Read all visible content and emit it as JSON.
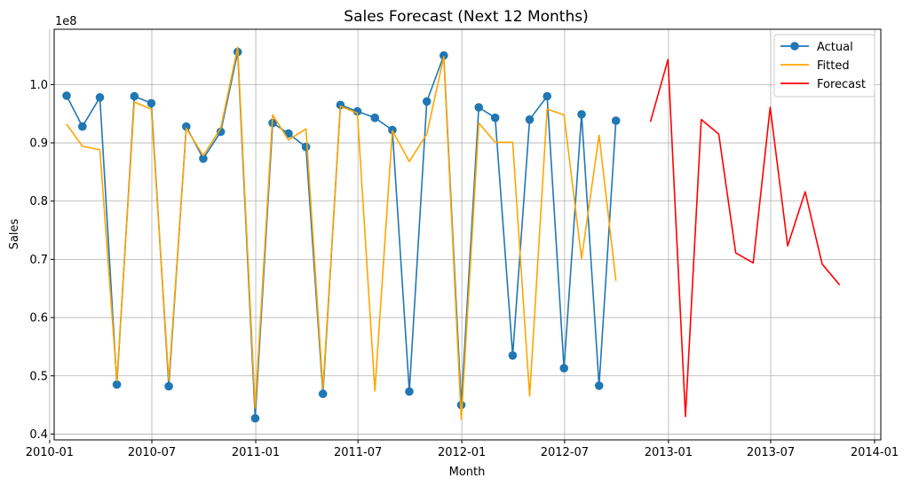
{
  "chart_data": {
    "type": "line",
    "title": "Sales Forecast (Next 12 Months)",
    "xlabel": "Month",
    "ylabel": "Sales",
    "y_offset_label": "1e8",
    "y_scale": 100000000,
    "ylim": [
      0.39,
      1.095
    ],
    "xlim": [
      "2010-01-09",
      "2014-01-12"
    ],
    "y_ticks": [
      "0.4",
      "0.5",
      "0.6",
      "0.7",
      "0.8",
      "0.9",
      "1.0"
    ],
    "y_tick_values": [
      0.4,
      0.5,
      0.6,
      0.7,
      0.8,
      0.9,
      1.0
    ],
    "x_ticks": [
      "2010-01",
      "2010-07",
      "2011-01",
      "2011-07",
      "2012-01",
      "2012-07",
      "2013-01",
      "2013-07",
      "2014-01"
    ],
    "x_tick_dates": [
      "2010-01-01",
      "2010-07-01",
      "2011-01-01",
      "2011-07-01",
      "2012-01-01",
      "2012-07-01",
      "2013-01-01",
      "2013-07-01",
      "2014-01-01"
    ],
    "grid": true,
    "legend_position": "top-right",
    "series": [
      {
        "name": "Actual",
        "color": "#1f77b4",
        "marker": "circle",
        "x": [
          "2010-01-31",
          "2010-02-28",
          "2010-03-31",
          "2010-04-30",
          "2010-05-31",
          "2010-06-30",
          "2010-07-31",
          "2010-08-31",
          "2010-09-30",
          "2010-10-31",
          "2010-11-30",
          "2010-12-31",
          "2011-01-31",
          "2011-02-28",
          "2011-03-31",
          "2011-04-30",
          "2011-05-31",
          "2011-06-30",
          "2011-07-31",
          "2011-08-31",
          "2011-09-30",
          "2011-10-31",
          "2011-11-30",
          "2011-12-31",
          "2012-01-31",
          "2012-02-29",
          "2012-03-31",
          "2012-04-30",
          "2012-05-31",
          "2012-06-30",
          "2012-07-31",
          "2012-08-31",
          "2012-09-30"
        ],
        "values": [
          0.981,
          0.928,
          0.978,
          0.485,
          0.98,
          0.968,
          0.482,
          0.928,
          0.873,
          0.919,
          1.056,
          0.427,
          0.934,
          0.916,
          0.893,
          0.469,
          0.965,
          0.954,
          0.943,
          0.922,
          0.473,
          0.971,
          1.05,
          0.45,
          0.961,
          0.943,
          0.535,
          0.94,
          0.98,
          0.513,
          0.949,
          0.483,
          0.938
        ]
      },
      {
        "name": "Fitted",
        "color": "#ffa500",
        "marker": "none",
        "x": [
          "2010-01-31",
          "2010-02-28",
          "2010-03-31",
          "2010-04-30",
          "2010-05-31",
          "2010-06-30",
          "2010-07-31",
          "2010-08-31",
          "2010-09-30",
          "2010-10-31",
          "2010-11-30",
          "2010-12-31",
          "2011-01-31",
          "2011-02-28",
          "2011-03-31",
          "2011-04-30",
          "2011-05-31",
          "2011-06-30",
          "2011-07-31",
          "2011-08-31",
          "2011-09-30",
          "2011-10-31",
          "2011-11-30",
          "2011-12-31",
          "2012-01-31",
          "2012-02-29",
          "2012-03-31",
          "2012-04-30",
          "2012-05-31",
          "2012-06-30",
          "2012-07-31",
          "2012-08-31",
          "2012-09-30"
        ],
        "values": [
          0.932,
          0.894,
          0.888,
          0.491,
          0.97,
          0.958,
          0.492,
          0.925,
          0.878,
          0.925,
          1.064,
          0.445,
          0.948,
          0.905,
          0.924,
          0.478,
          0.963,
          0.951,
          0.474,
          0.921,
          0.868,
          0.915,
          1.048,
          0.425,
          0.934,
          0.901,
          0.901,
          0.465,
          0.958,
          0.948,
          0.701,
          0.913,
          0.663
        ]
      },
      {
        "name": "Forecast",
        "color": "#ff0000",
        "marker": "none",
        "x": [
          "2012-11-30",
          "2012-12-31",
          "2013-01-31",
          "2013-02-28",
          "2013-03-31",
          "2013-04-30",
          "2013-05-31",
          "2013-06-30",
          "2013-07-31",
          "2013-08-31",
          "2013-09-30",
          "2013-10-31"
        ],
        "values": [
          0.936,
          1.043,
          0.43,
          0.94,
          0.915,
          0.711,
          0.694,
          0.961,
          0.723,
          0.816,
          0.692,
          0.656
        ]
      }
    ]
  }
}
